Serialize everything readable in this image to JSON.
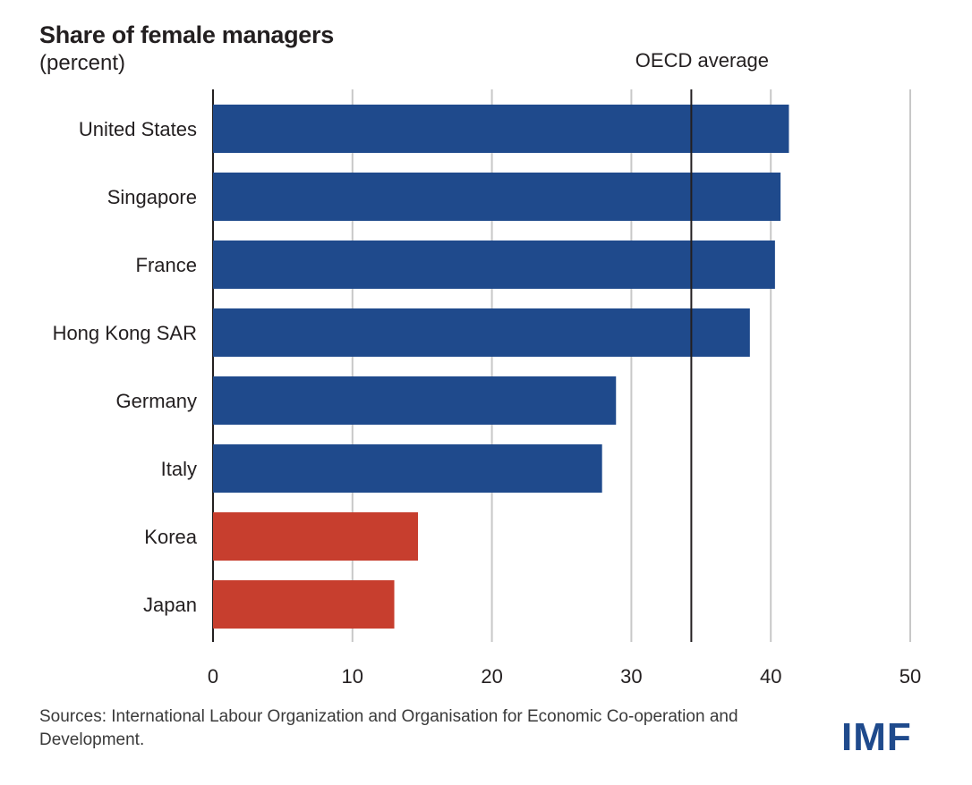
{
  "header": {
    "title": "Share of female managers",
    "subtitle": "(percent)"
  },
  "chart_data": {
    "type": "bar",
    "orientation": "horizontal",
    "title": "Share of female managers",
    "subtitle": "(percent)",
    "xlabel": "",
    "ylabel": "",
    "xlim": [
      0,
      50
    ],
    "x_ticks": [
      "0",
      "10",
      "20",
      "30",
      "40",
      "50"
    ],
    "grid": true,
    "categories": [
      "United States",
      "Singapore",
      "France",
      "Hong Kong SAR",
      "Germany",
      "Italy",
      "Korea",
      "Japan"
    ],
    "values": [
      41.3,
      40.7,
      40.3,
      38.5,
      28.9,
      27.9,
      14.7,
      13.0
    ],
    "highlight": [
      "Korea",
      "Japan"
    ],
    "colors": {
      "default": "#1f4a8c",
      "highlight": "#c73e2e",
      "grid": "#c8c8c8",
      "axis": "#231f20"
    },
    "reference_line": {
      "label": "OECD average",
      "value": 34.3
    }
  },
  "footer": {
    "sources": "Sources: International Labour Organization and Organisation for Economic Co-operation and Development.",
    "logo": "IMF"
  }
}
